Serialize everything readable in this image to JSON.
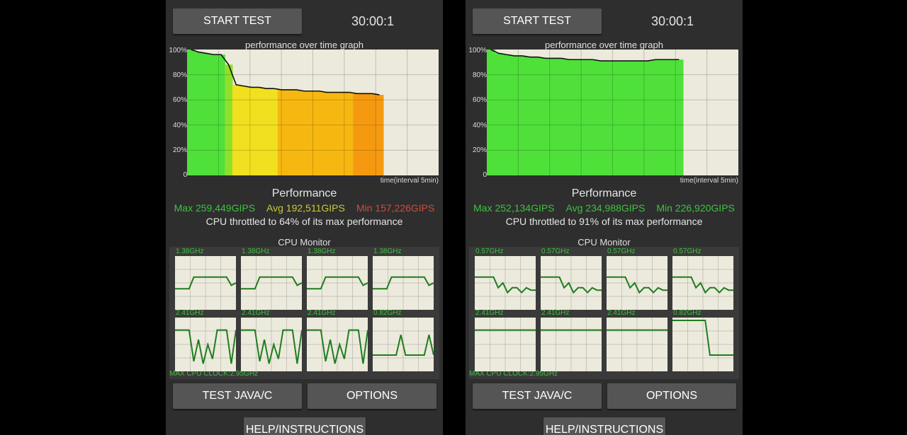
{
  "panels": [
    {
      "start_label": "START TEST",
      "timer": "30:00:1",
      "graph_title": "performance over time graph",
      "y_ticks": [
        "100%",
        "80%",
        "60%",
        "40%",
        "20%",
        "0"
      ],
      "time_label": "time(interval 5min)",
      "perf_title": "Performance",
      "max": "Max 259,449GIPS",
      "avg": "Avg 192,511GIPS",
      "min": "Min 157,226GIPS",
      "throttle": "CPU throttled to 64% of its max performance",
      "cpu_monitor_title": "CPU Monitor",
      "cores": [
        "1.38GHz",
        "1.38GHz",
        "1.38GHz",
        "1.38GHz",
        "2.41GHz",
        "2.41GHz",
        "2.41GHz",
        "0.82GHz"
      ],
      "max_clock": "MAX CPU CLOCK:2.95GHz",
      "test_label": "TEST JAVA/C",
      "options_label": "OPTIONS",
      "help_label": "HELP/INSTRUCTIONS",
      "performance_series": [
        100,
        98,
        97,
        96,
        96,
        88,
        72,
        71,
        70,
        70,
        69,
        69,
        68,
        68,
        68,
        67,
        67,
        67,
        66,
        66,
        66,
        66,
        65,
        65,
        65,
        64
      ],
      "series_end_fraction": 0.78,
      "colors": {
        "max": "#3ec13e",
        "avg": "#c8c83a",
        "min": "#d04b3a"
      }
    },
    {
      "start_label": "START TEST",
      "timer": "30:00:1",
      "graph_title": "performance over time graph",
      "y_ticks": [
        "100%",
        "80%",
        "60%",
        "40%",
        "20%",
        "0"
      ],
      "time_label": "time(interval 5min)",
      "perf_title": "Performance",
      "max": "Max 252,134GIPS",
      "avg": "Avg 234,988GIPS",
      "min": "Min 226,920GIPS",
      "throttle": "CPU throttled to 91% of its max performance",
      "cpu_monitor_title": "CPU Monitor",
      "cores": [
        "0.57GHz",
        "0.57GHz",
        "0.57GHz",
        "0.57GHz",
        "2.41GHz",
        "2.41GHz",
        "2.41GHz",
        "0.82GHz"
      ],
      "max_clock": "MAX CPU CLOCK:2.95GHz",
      "test_label": "TEST JAVA/C",
      "options_label": "OPTIONS",
      "help_label": "HELP/INSTRUCTIONS",
      "performance_series": [
        100,
        97,
        96,
        95,
        95,
        94,
        94,
        93,
        93,
        93,
        92,
        92,
        92,
        92,
        91,
        91,
        91,
        91,
        91,
        91,
        91,
        92,
        92,
        92,
        92
      ],
      "series_end_fraction": 0.78,
      "colors": {
        "max": "#3ec13e",
        "avg": "#3ec13e",
        "min": "#3ec13e"
      }
    }
  ]
}
